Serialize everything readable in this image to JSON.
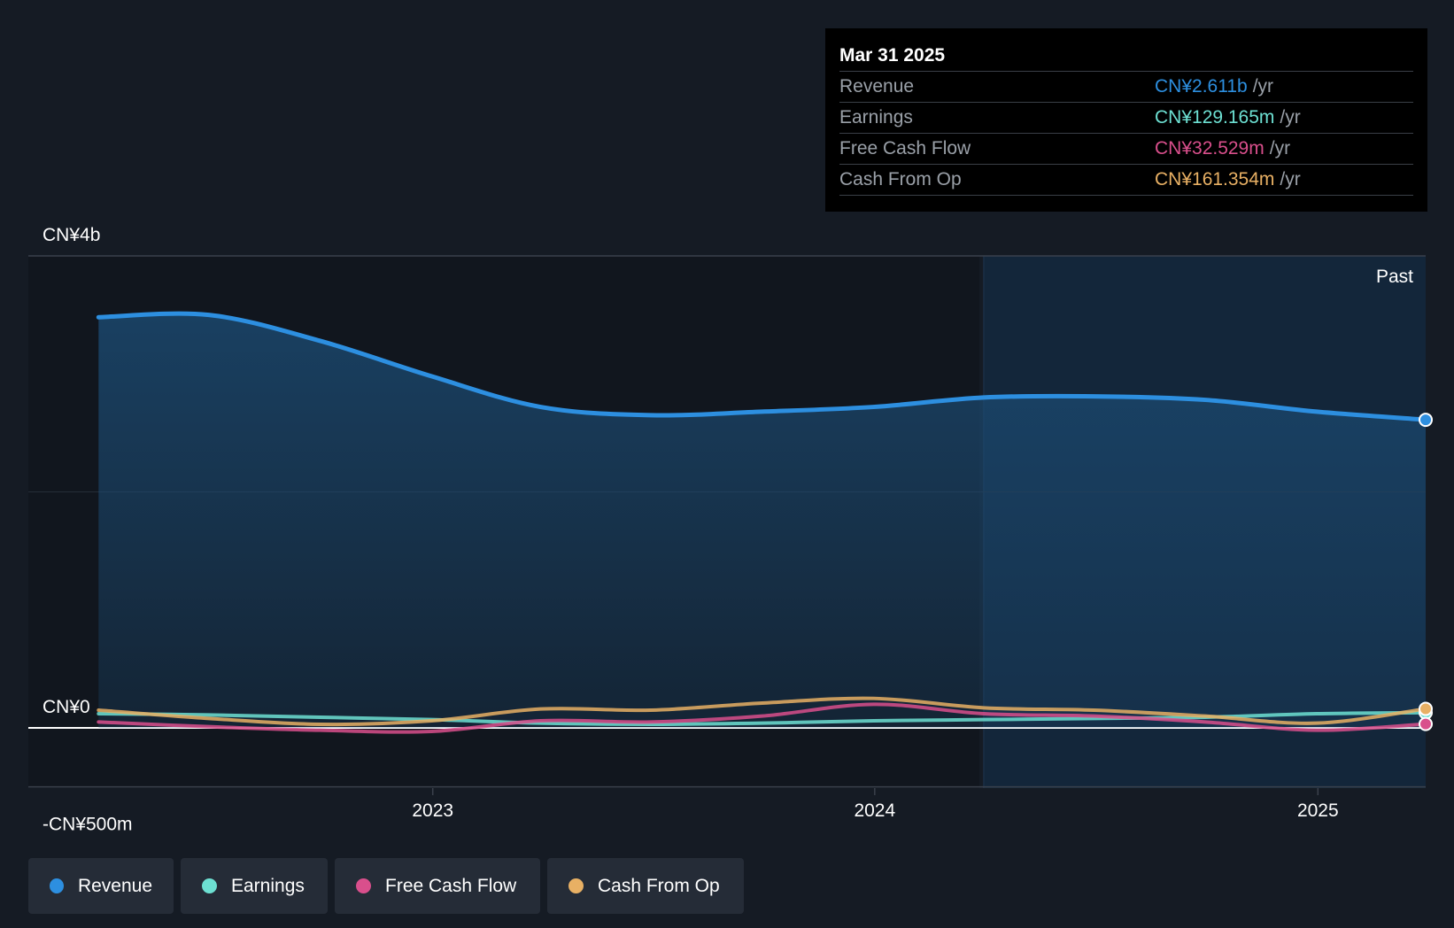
{
  "tooltip": {
    "date": "Mar 31 2025",
    "rows": [
      {
        "label": "Revenue",
        "value": "CN¥2.611b",
        "unit": "/yr",
        "color": "#2d8fe0"
      },
      {
        "label": "Earnings",
        "value": "CN¥129.165m",
        "unit": "/yr",
        "color": "#6de0d2"
      },
      {
        "label": "Free Cash Flow",
        "value": "CN¥32.529m",
        "unit": "/yr",
        "color": "#d94f8c"
      },
      {
        "label": "Cash From Op",
        "value": "CN¥161.354m",
        "unit": "/yr",
        "color": "#e8b064"
      }
    ]
  },
  "past_label": "Past",
  "legend": [
    {
      "label": "Revenue",
      "color": "#2d8fe0"
    },
    {
      "label": "Earnings",
      "color": "#6de0d2"
    },
    {
      "label": "Free Cash Flow",
      "color": "#d94f8c"
    },
    {
      "label": "Cash From Op",
      "color": "#e8b064"
    }
  ],
  "chart_data": {
    "type": "line",
    "y_tick_labels": [
      "CN¥4b",
      "CN¥0",
      "-CN¥500m"
    ],
    "y_tick_values": [
      4000,
      0,
      -500
    ],
    "ylim": [
      -500,
      4000
    ],
    "x_tick_labels": [
      "2023",
      "2024",
      "2025"
    ],
    "x_tick_values": [
      "2023-01-01",
      "2024-01-01",
      "2025-01-01"
    ],
    "xlim": [
      "2022-02-01",
      "2025-03-31"
    ],
    "past_start": "2024-03-31",
    "x": [
      "2022-03-31",
      "2022-06-30",
      "2022-09-30",
      "2022-12-31",
      "2023-03-31",
      "2023-06-30",
      "2023-09-30",
      "2023-12-31",
      "2024-03-31",
      "2024-06-30",
      "2024-09-30",
      "2024-12-31",
      "2025-03-31"
    ],
    "series": [
      {
        "name": "Revenue",
        "color": "#2d8fe0",
        "values": [
          3480,
          3500,
          3280,
          2980,
          2720,
          2650,
          2680,
          2720,
          2800,
          2810,
          2780,
          2680,
          2611
        ]
      },
      {
        "name": "Earnings",
        "color": "#6de0d2",
        "values": [
          120,
          110,
          90,
          70,
          40,
          30,
          40,
          60,
          70,
          80,
          90,
          120,
          129
        ]
      },
      {
        "name": "Free Cash Flow",
        "color": "#d94f8c",
        "values": [
          50,
          10,
          -20,
          -30,
          60,
          50,
          100,
          200,
          120,
          100,
          50,
          -20,
          33
        ]
      },
      {
        "name": "Cash From Op",
        "color": "#e8b064",
        "values": [
          150,
          80,
          30,
          60,
          160,
          150,
          210,
          250,
          170,
          150,
          100,
          40,
          161
        ]
      }
    ]
  }
}
